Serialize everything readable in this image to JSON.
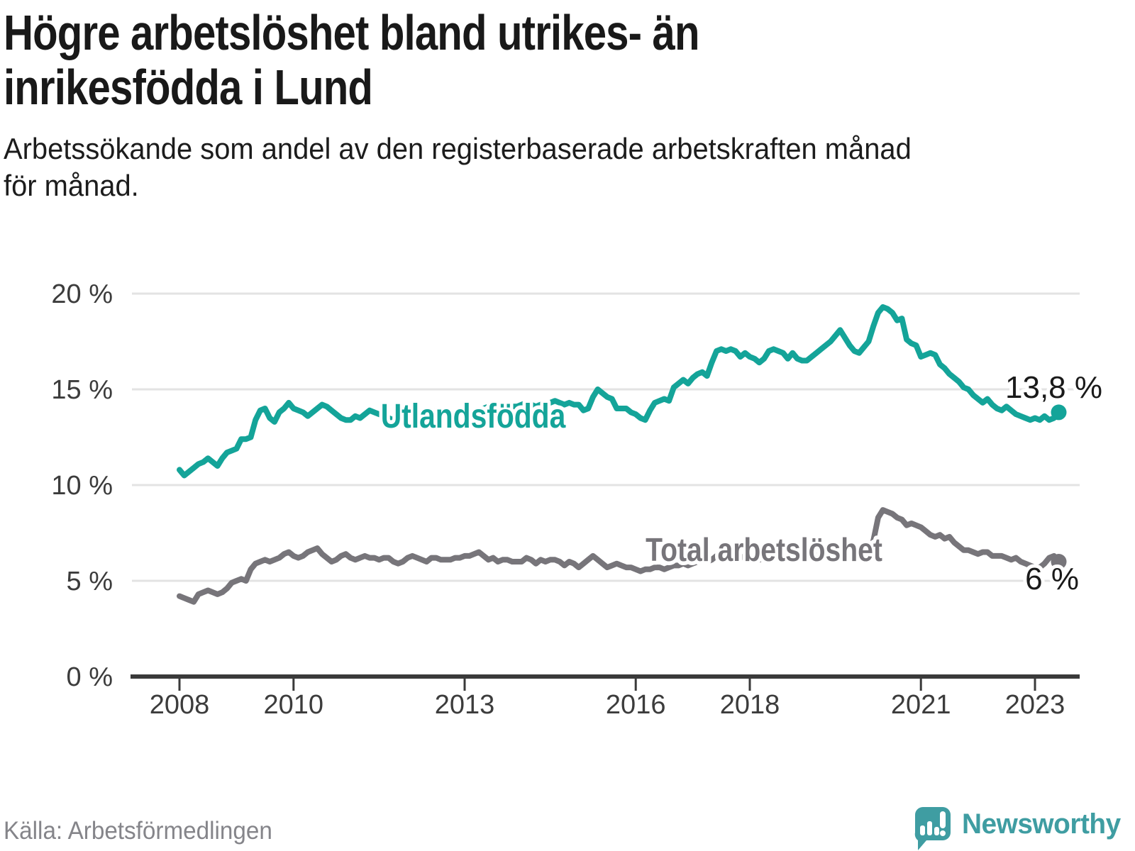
{
  "header": {
    "title": "Högre arbetslöshet bland utrikes- än inrikesfödda i Lund",
    "title_lines": [
      "Högre arbetslöshet bland utrikes- än",
      "inrikesfödda i Lund"
    ],
    "subtitle_lines": [
      "Arbetssökande som andel av den registerbaserade arbetskraften månad",
      "för månad."
    ]
  },
  "footer": {
    "source": "Källa: Arbetsförmedlingen",
    "brand": "Newsworthy",
    "logo_icon": "newsworthy-speech-bubble-bars-icon"
  },
  "colors": {
    "teal": "#14a499",
    "gray": "#77757a",
    "logo_teal": "#3f9da2",
    "axis": "#3a3a3a",
    "grid": "#e3e3e3",
    "tick_text": "#3c3c3c",
    "label_text": "#1a1a1a",
    "source_text": "#85858a",
    "background": "#ffffff"
  },
  "chart_data": {
    "type": "line",
    "title": "Högre arbetslöshet bland utrikes- än inrikesfödda i Lund",
    "subtitle": "Arbetssökande som andel av den registerbaserade arbetskraften månad för månad.",
    "unit": "%",
    "frequency": "monthly",
    "x_start_year": 2008,
    "x_start_month": 1,
    "grid": true,
    "legend_position": "labels-on-lines",
    "ylim": [
      0,
      20.8
    ],
    "xlim_years": [
      2007.2,
      2023.9
    ],
    "y_ticks": [
      {
        "value": 0,
        "label": "0 %"
      },
      {
        "value": 5,
        "label": "5 %"
      },
      {
        "value": 10,
        "label": "10 %"
      },
      {
        "value": 15,
        "label": "15 %"
      },
      {
        "value": 20,
        "label": "20 %"
      }
    ],
    "x_ticks": [
      {
        "year": 2008,
        "label": "2008"
      },
      {
        "year": 2010,
        "label": "2010"
      },
      {
        "year": 2013,
        "label": "2013"
      },
      {
        "year": 2016,
        "label": "2016"
      },
      {
        "year": 2018,
        "label": "2018"
      },
      {
        "year": 2021,
        "label": "2021"
      },
      {
        "year": 2023,
        "label": "2023"
      }
    ],
    "series": [
      {
        "name": "Utlandsfödda",
        "color_key": "teal",
        "end_label": "13,8 %",
        "last_value": 13.8,
        "values": [
          10.8,
          10.5,
          10.7,
          10.9,
          11.1,
          11.2,
          11.4,
          11.2,
          11.0,
          11.4,
          11.7,
          11.8,
          11.9,
          12.4,
          12.4,
          12.5,
          13.4,
          13.9,
          14.0,
          13.5,
          13.3,
          13.8,
          14.0,
          14.3,
          14.0,
          13.9,
          13.8,
          13.6,
          13.8,
          14.0,
          14.2,
          14.1,
          13.9,
          13.7,
          13.5,
          13.4,
          13.4,
          13.6,
          13.5,
          13.7,
          13.9,
          13.8,
          13.7,
          13.6,
          13.5,
          13.4,
          13.4,
          13.5,
          13.5,
          13.6,
          13.5,
          13.6,
          13.7,
          13.8,
          13.9,
          13.8,
          13.7,
          13.7,
          13.8,
          13.8,
          13.8,
          13.9,
          13.8,
          13.9,
          14.0,
          14.1,
          14.2,
          14.1,
          14.0,
          14.0,
          14.1,
          14.1,
          14.2,
          14.3,
          14.2,
          14.1,
          14.2,
          14.3,
          14.3,
          14.4,
          14.3,
          14.2,
          14.3,
          14.2,
          14.2,
          13.9,
          14.0,
          14.6,
          15.0,
          14.8,
          14.6,
          14.5,
          14.0,
          14.0,
          14.0,
          13.8,
          13.7,
          13.5,
          13.4,
          13.9,
          14.3,
          14.4,
          14.5,
          14.4,
          15.1,
          15.3,
          15.5,
          15.3,
          15.6,
          15.8,
          15.9,
          15.7,
          16.4,
          17.0,
          17.1,
          17.0,
          17.1,
          17.0,
          16.7,
          16.9,
          16.7,
          16.6,
          16.4,
          16.6,
          17.0,
          17.1,
          17.0,
          16.9,
          16.6,
          16.9,
          16.6,
          16.5,
          16.5,
          16.7,
          16.9,
          17.1,
          17.3,
          17.5,
          17.8,
          18.1,
          17.7,
          17.3,
          17.0,
          16.9,
          17.2,
          17.5,
          18.3,
          19.0,
          19.3,
          19.2,
          19.0,
          18.6,
          18.7,
          17.6,
          17.4,
          17.3,
          16.7,
          16.8,
          16.9,
          16.8,
          16.3,
          16.1,
          15.8,
          15.6,
          15.4,
          15.1,
          15.0,
          14.7,
          14.5,
          14.3,
          14.5,
          14.2,
          14.0,
          13.9,
          14.1,
          13.9,
          13.7,
          13.6,
          13.5,
          13.4,
          13.5,
          13.4,
          13.6,
          13.4,
          13.5,
          13.8
        ]
      },
      {
        "name": "Total arbetslöshet",
        "color_key": "gray",
        "end_label": "6 %",
        "last_value": 6.0,
        "values": [
          4.2,
          4.1,
          4.0,
          3.9,
          4.3,
          4.4,
          4.5,
          4.4,
          4.3,
          4.4,
          4.6,
          4.9,
          5.0,
          5.1,
          5.0,
          5.6,
          5.9,
          6.0,
          6.1,
          6.0,
          6.1,
          6.2,
          6.4,
          6.5,
          6.3,
          6.2,
          6.3,
          6.5,
          6.6,
          6.7,
          6.4,
          6.2,
          6.0,
          6.1,
          6.3,
          6.4,
          6.2,
          6.1,
          6.2,
          6.3,
          6.2,
          6.2,
          6.1,
          6.2,
          6.2,
          6.0,
          5.9,
          6.0,
          6.2,
          6.3,
          6.2,
          6.1,
          6.0,
          6.2,
          6.2,
          6.1,
          6.1,
          6.1,
          6.2,
          6.2,
          6.3,
          6.3,
          6.4,
          6.5,
          6.3,
          6.1,
          6.2,
          6.0,
          6.1,
          6.1,
          6.0,
          6.0,
          6.0,
          6.2,
          6.1,
          5.9,
          6.1,
          6.0,
          6.1,
          6.1,
          6.0,
          5.8,
          6.0,
          5.9,
          5.7,
          5.9,
          6.1,
          6.3,
          6.1,
          5.9,
          5.7,
          5.8,
          5.9,
          5.8,
          5.7,
          5.7,
          5.6,
          5.5,
          5.6,
          5.6,
          5.7,
          5.7,
          5.6,
          5.7,
          5.8,
          5.8,
          5.9,
          5.8,
          5.9,
          6.0,
          6.0,
          6.0,
          6.1,
          6.3,
          6.4,
          6.3,
          6.4,
          6.3,
          6.2,
          6.3,
          6.2,
          6.2,
          6.1,
          6.2,
          6.3,
          6.4,
          6.3,
          6.3,
          6.2,
          6.3,
          6.2,
          6.1,
          6.1,
          6.2,
          6.3,
          6.4,
          6.5,
          6.6,
          6.7,
          6.8,
          6.7,
          6.5,
          6.4,
          6.4,
          6.5,
          6.6,
          7.1,
          8.3,
          8.7,
          8.6,
          8.5,
          8.3,
          8.2,
          7.9,
          8.0,
          7.9,
          7.8,
          7.6,
          7.4,
          7.3,
          7.4,
          7.2,
          7.3,
          7.0,
          6.8,
          6.6,
          6.6,
          6.5,
          6.4,
          6.5,
          6.5,
          6.3,
          6.3,
          6.3,
          6.2,
          6.1,
          6.2,
          6.0,
          5.9,
          5.8,
          5.7,
          5.7,
          5.9,
          6.2,
          6.3,
          6.0
        ]
      }
    ]
  }
}
